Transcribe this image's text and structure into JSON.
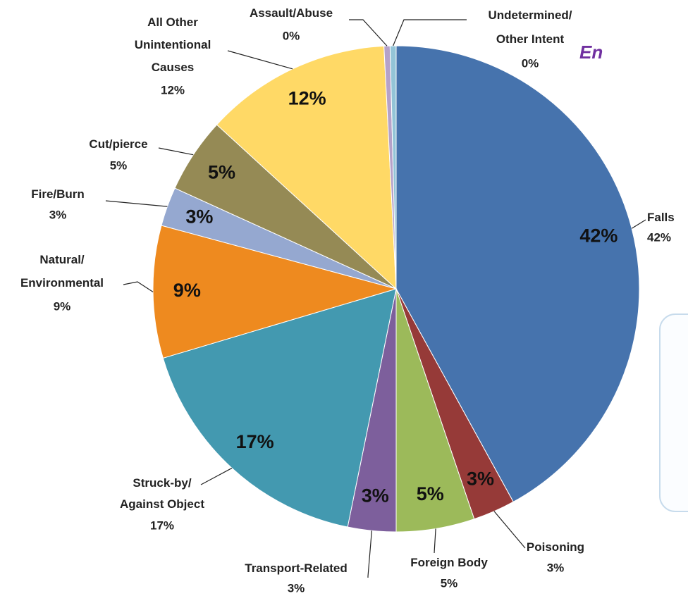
{
  "chart_data": {
    "type": "pie",
    "title": "En",
    "categories": [
      "Falls",
      "Poisoning",
      "Foreign Body",
      "Transport-Related",
      "Struck-by/\nAgainst Object",
      "Natural/\nEnvironmental",
      "Fire/Burn",
      "Cut/pierce",
      "All Other\nUnintentional\nCauses",
      "Assault/Abuse",
      "Undetermined/\nOther Intent"
    ],
    "values": [
      42.0,
      2.8,
      5.2,
      3.2,
      17.2,
      8.8,
      2.6,
      5.0,
      12.4,
      0.4,
      0.4
    ],
    "value_labels": [
      "42%",
      "3%",
      "5%",
      "3%",
      "17%",
      "9%",
      "3%",
      "5%",
      "12%",
      "0%",
      "0%"
    ],
    "colors": [
      "#4673ad",
      "#963a38",
      "#9cba5a",
      "#7d5f9c",
      "#4399b0",
      "#ee8a1f",
      "#95a8d0",
      "#958a55",
      "#ffd966",
      "#b5a2c9",
      "#93c4d7"
    ]
  }
}
